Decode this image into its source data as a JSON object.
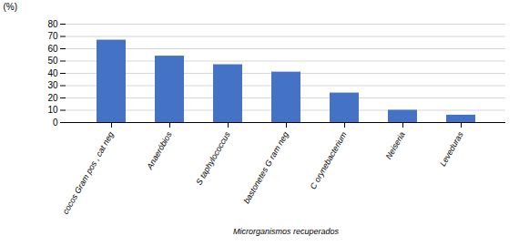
{
  "chart_data": {
    "type": "bar",
    "categories": [
      "cocos Gram pos , cat neg",
      "Anaeróbios",
      "S taphylococcus",
      "bastonetes G ram neg",
      "C orynebacterium",
      "Neiseria",
      "Leveduras"
    ],
    "values": [
      67,
      54,
      47,
      41,
      24,
      10,
      6
    ],
    "color": "#4472C4",
    "xlabel": "Microrganismos recuperados",
    "ylabel": "(%)",
    "ylim": [
      0,
      80
    ],
    "yticks": [
      0,
      10,
      20,
      30,
      40,
      50,
      60,
      70,
      80
    ],
    "grid": true
  }
}
